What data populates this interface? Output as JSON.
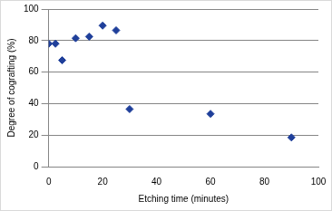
{
  "chart_data": {
    "type": "scatter",
    "x_label": "Etching time (minutes)",
    "y_label": "Degree of cografting (%)",
    "x": [
      0,
      2.5,
      5,
      10,
      15,
      20,
      25,
      30,
      60,
      90
    ],
    "values": [
      78,
      78,
      67.5,
      81.5,
      82.5,
      89.5,
      86.5,
      36.5,
      33.5,
      18.5
    ],
    "color": "#1f3f9a",
    "marker": "diamond",
    "xlim": [
      0,
      100
    ],
    "xticks": [
      0,
      20,
      40,
      60,
      80,
      100
    ],
    "ylim": [
      0,
      100
    ],
    "yticks": [
      0,
      20,
      40,
      60,
      80,
      100
    ],
    "grid": true
  }
}
